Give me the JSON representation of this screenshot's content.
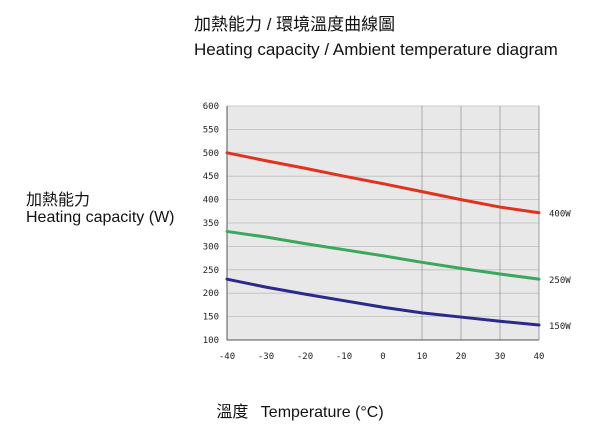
{
  "title_zh": "加熱能力 / 環境溫度曲線圖",
  "title_en": "Heating capacity / Ambient temperature diagram",
  "ylabel_zh": "加熱能力",
  "ylabel_en": "Heating capacity (W)",
  "xlabel_zh": "溫度",
  "xlabel_en": "Temperature (°C)",
  "chart_data": {
    "type": "line",
    "title": "Heating capacity / Ambient temperature diagram",
    "xlabel": "Temperature (°C)",
    "ylabel": "Heating capacity (W)",
    "xlim": [
      -40,
      40
    ],
    "ylim": [
      100,
      600
    ],
    "xticks": [
      -40,
      -30,
      -20,
      -10,
      0,
      10,
      20,
      30,
      40
    ],
    "yticks": [
      100,
      150,
      200,
      250,
      300,
      350,
      400,
      450,
      500,
      550,
      600
    ],
    "grid": true,
    "plot_background": "#e8e8e8",
    "series": [
      {
        "name": "400W",
        "color": "#e0321e",
        "x": [
          -40,
          -30,
          -20,
          -10,
          0,
          10,
          20,
          30,
          40
        ],
        "y": [
          500,
          483,
          467,
          450,
          434,
          417,
          400,
          384,
          372
        ]
      },
      {
        "name": "250W",
        "color": "#3aa85a",
        "x": [
          -40,
          -30,
          -20,
          -10,
          0,
          10,
          20,
          30,
          40
        ],
        "y": [
          332,
          320,
          306,
          293,
          280,
          266,
          253,
          241,
          230
        ]
      },
      {
        "name": "150W",
        "color": "#2a2a8c",
        "x": [
          -40,
          -30,
          -20,
          -10,
          0,
          10,
          20,
          30,
          40
        ],
        "y": [
          230,
          213,
          198,
          184,
          170,
          158,
          149,
          140,
          132
        ]
      }
    ]
  }
}
